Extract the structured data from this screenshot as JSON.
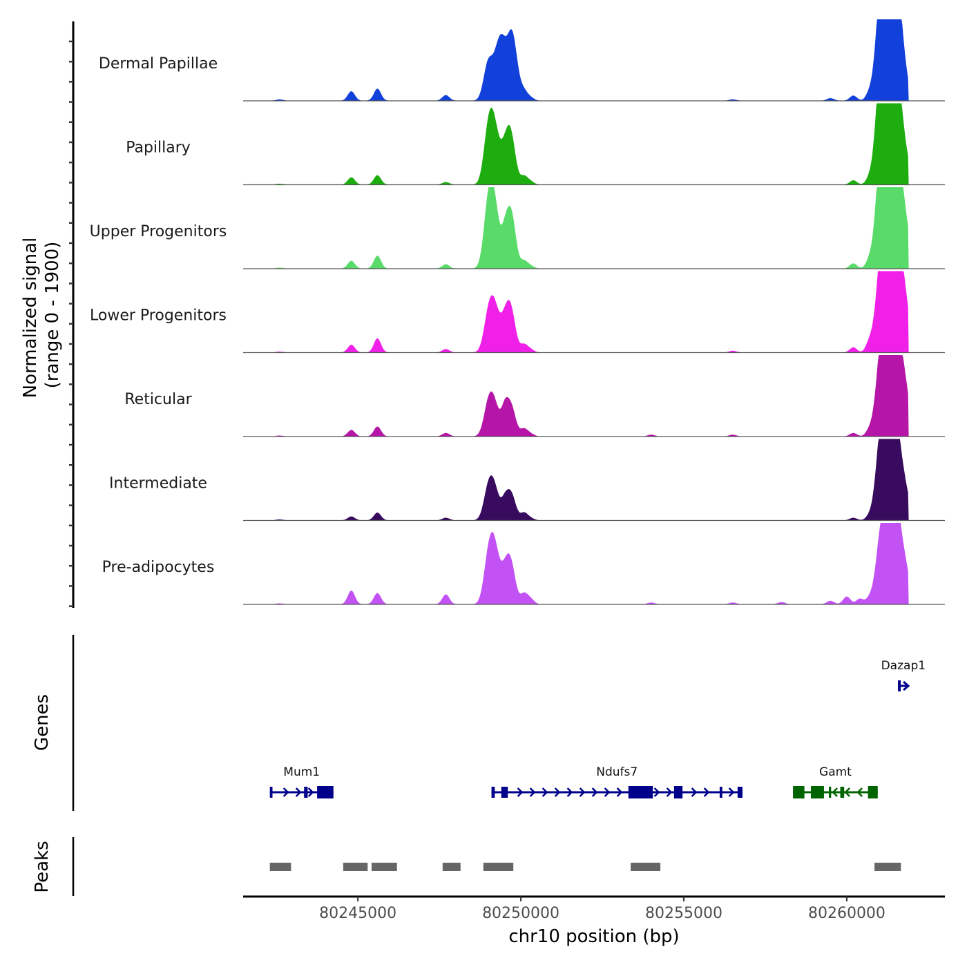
{
  "chart_data": {
    "type": "area",
    "title": "",
    "xlabel": "chr10 position (bp)",
    "ylabel": "Normalized signal\n(range 0 - 1900)",
    "ylabel_lines": [
      "Normalized signal",
      "(range 0 - 1900)"
    ],
    "ylim": [
      0,
      1900
    ],
    "xlim": [
      80241480,
      80263010
    ],
    "x_ticks": [
      80245000,
      80250000,
      80255000,
      80260000
    ],
    "x_tick_labels": [
      "80245000",
      "80250000",
      "80255000",
      "80260000"
    ],
    "grid": false,
    "legend": "none",
    "peak_scale_note": "values are approximate normalized signal peaks (0-1900)",
    "tracks": [
      {
        "name": "Dermal Papillae",
        "color": "#1240DB",
        "peaks": [
          [
            80242600,
            30
          ],
          [
            80244800,
            220
          ],
          [
            80245600,
            280
          ],
          [
            80247700,
            130
          ],
          [
            80249000,
            880
          ],
          [
            80249300,
            1000
          ],
          [
            80249500,
            950
          ],
          [
            80249700,
            550
          ],
          [
            80249800,
            980
          ],
          [
            80250100,
            200
          ],
          [
            80250300,
            70
          ],
          [
            80256500,
            30
          ],
          [
            80259500,
            60
          ],
          [
            80260200,
            120
          ],
          [
            80260700,
            180
          ],
          [
            80261000,
            1600
          ],
          [
            80261150,
            1800
          ],
          [
            80261300,
            1700
          ],
          [
            80261450,
            1650
          ],
          [
            80261550,
            1600
          ],
          [
            80261650,
            250
          ],
          [
            80261800,
            500
          ]
        ]
      },
      {
        "name": "Papillary",
        "color": "#1EAD0F",
        "peaks": [
          [
            80242600,
            20
          ],
          [
            80244800,
            170
          ],
          [
            80245600,
            220
          ],
          [
            80247700,
            60
          ],
          [
            80249000,
            1200
          ],
          [
            80249200,
            1100
          ],
          [
            80249500,
            700
          ],
          [
            80249700,
            1050
          ],
          [
            80250100,
            190
          ],
          [
            80250300,
            70
          ],
          [
            80260200,
            100
          ],
          [
            80260700,
            150
          ],
          [
            80261000,
            1800
          ],
          [
            80261150,
            1700
          ],
          [
            80261300,
            1450
          ],
          [
            80261450,
            1500
          ],
          [
            80261550,
            1300
          ],
          [
            80261650,
            250
          ],
          [
            80261800,
            650
          ]
        ]
      },
      {
        "name": "Upper Progenitors",
        "color": "#59DB6A",
        "peaks": [
          [
            80242600,
            20
          ],
          [
            80244800,
            180
          ],
          [
            80245600,
            300
          ],
          [
            80247700,
            100
          ],
          [
            80249000,
            1400
          ],
          [
            80249200,
            1300
          ],
          [
            80249500,
            600
          ],
          [
            80249700,
            1300
          ],
          [
            80250100,
            170
          ],
          [
            80250300,
            60
          ],
          [
            80260200,
            120
          ],
          [
            80260700,
            200
          ],
          [
            80261000,
            1700
          ],
          [
            80261150,
            1800
          ],
          [
            80261300,
            1500
          ],
          [
            80261450,
            1600
          ],
          [
            80261550,
            1400
          ],
          [
            80261650,
            250
          ],
          [
            80261800,
            1000
          ]
        ]
      },
      {
        "name": "Lower Progenitors",
        "color": "#F020E8",
        "peaks": [
          [
            80242600,
            20
          ],
          [
            80244800,
            180
          ],
          [
            80245600,
            330
          ],
          [
            80247700,
            80
          ],
          [
            80249000,
            800
          ],
          [
            80249200,
            900
          ],
          [
            80249500,
            650
          ],
          [
            80249700,
            900
          ],
          [
            80250100,
            180
          ],
          [
            80250300,
            70
          ],
          [
            80256500,
            40
          ],
          [
            80260200,
            120
          ],
          [
            80260700,
            250
          ],
          [
            80261000,
            1350
          ],
          [
            80261150,
            1400
          ],
          [
            80261300,
            1300
          ],
          [
            80261450,
            1450
          ],
          [
            80261550,
            1500
          ],
          [
            80261650,
            250
          ],
          [
            80261800,
            1100
          ]
        ]
      },
      {
        "name": "Reticular",
        "color": "#B516A8",
        "peaks": [
          [
            80242600,
            20
          ],
          [
            80244800,
            150
          ],
          [
            80245600,
            230
          ],
          [
            80247700,
            80
          ],
          [
            80249000,
            700
          ],
          [
            80249200,
            650
          ],
          [
            80249500,
            540
          ],
          [
            80249700,
            700
          ],
          [
            80250100,
            170
          ],
          [
            80250300,
            60
          ],
          [
            80254000,
            40
          ],
          [
            80256500,
            40
          ],
          [
            80260200,
            80
          ],
          [
            80260700,
            150
          ],
          [
            80261000,
            1250
          ],
          [
            80261150,
            1300
          ],
          [
            80261300,
            1200
          ],
          [
            80261450,
            1350
          ],
          [
            80261550,
            1300
          ],
          [
            80261650,
            200
          ],
          [
            80261800,
            1050
          ]
        ]
      },
      {
        "name": "Intermediate",
        "color": "#380B5E",
        "peaks": [
          [
            80242600,
            20
          ],
          [
            80244800,
            90
          ],
          [
            80245600,
            180
          ],
          [
            80247700,
            60
          ],
          [
            80249000,
            700
          ],
          [
            80249200,
            650
          ],
          [
            80249500,
            350
          ],
          [
            80249700,
            620
          ],
          [
            80250100,
            170
          ],
          [
            80250300,
            50
          ],
          [
            80260200,
            60
          ],
          [
            80260700,
            100
          ],
          [
            80261000,
            1300
          ],
          [
            80261150,
            1250
          ],
          [
            80261300,
            1150
          ],
          [
            80261450,
            1200
          ],
          [
            80261550,
            950
          ],
          [
            80261650,
            200
          ],
          [
            80261800,
            650
          ]
        ]
      },
      {
        "name": "Pre-adipocytes",
        "color": "#C352F5",
        "peaks": [
          [
            80242600,
            20
          ],
          [
            80244800,
            320
          ],
          [
            80245600,
            260
          ],
          [
            80247700,
            230
          ],
          [
            80249000,
            1000
          ],
          [
            80249200,
            1150
          ],
          [
            80249500,
            650
          ],
          [
            80249700,
            850
          ],
          [
            80250100,
            240
          ],
          [
            80250300,
            120
          ],
          [
            80254000,
            40
          ],
          [
            80256500,
            40
          ],
          [
            80258000,
            50
          ],
          [
            80259500,
            80
          ],
          [
            80260000,
            180
          ],
          [
            80260400,
            130
          ],
          [
            80260700,
            140
          ],
          [
            80261000,
            1050
          ],
          [
            80261150,
            950
          ],
          [
            80261300,
            1200
          ],
          [
            80261450,
            1300
          ],
          [
            80261550,
            1050
          ],
          [
            80261650,
            150
          ],
          [
            80261800,
            800
          ]
        ]
      }
    ],
    "genes": [
      {
        "name": "Mum1",
        "strand": "+",
        "color": "#00008B",
        "row": 2,
        "start": 80242300,
        "end": 80244250,
        "exons": [
          [
            80242300,
            80242380
          ],
          [
            80243350,
            80243460
          ],
          [
            80243750,
            80244250
          ]
        ]
      },
      {
        "name": "Ndufs7",
        "strand": "+",
        "color": "#00008B",
        "row": 2,
        "start": 80249100,
        "end": 80256800,
        "exons": [
          [
            80249100,
            80249200
          ],
          [
            80249400,
            80249600
          ],
          [
            80253300,
            80254050
          ],
          [
            80254700,
            80254960
          ],
          [
            80256100,
            80256180
          ],
          [
            80256650,
            80256800
          ]
        ]
      },
      {
        "name": "Gamt",
        "strand": "-",
        "color": "#006400",
        "row": 2,
        "start": 80258350,
        "end": 80260950,
        "exons": [
          [
            80258350,
            80258700
          ],
          [
            80258900,
            80259300
          ],
          [
            80259450,
            80259520
          ],
          [
            80259800,
            80259920
          ],
          [
            80260650,
            80260950
          ]
        ]
      },
      {
        "name": "Dazap1",
        "strand": "+",
        "color": "#00008B",
        "row": 1,
        "start": 80261570,
        "end": 80261900,
        "exons": [
          [
            80261570,
            80261680
          ]
        ]
      }
    ],
    "peaks_track": [
      [
        80242300,
        80242950
      ],
      [
        80244550,
        80245300
      ],
      [
        80245420,
        80246200
      ],
      [
        80247600,
        80248150
      ],
      [
        80248850,
        80249770
      ],
      [
        80253370,
        80254280
      ],
      [
        80260850,
        80261660
      ]
    ]
  },
  "panels": {
    "genes_label": "Genes",
    "peaks_label": "Peaks"
  }
}
